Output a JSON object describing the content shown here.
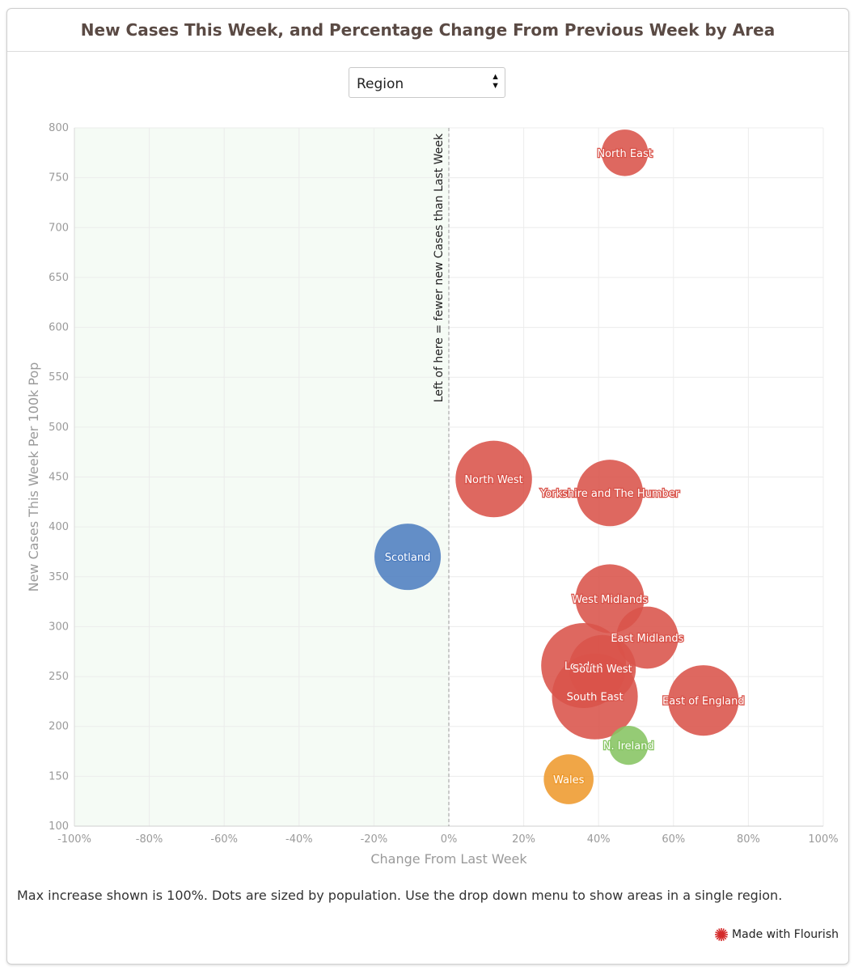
{
  "header": {
    "title": "New Cases This Week, and Percentage Change From Previous Week by Area"
  },
  "filter": {
    "selected": "Region",
    "icon": "sort-arrows-icon"
  },
  "footer": {
    "note": "Max increase shown is 100%. Dots are sized by population. Use the drop down menu to show areas in a single region.",
    "brand": "Made with Flourish",
    "brand_icon": "flourish-star-icon"
  },
  "chart_data": {
    "type": "scatter",
    "xlabel": "Change From Last Week",
    "ylabel": "New Cases This Week Per 100k Pop",
    "xlim": [
      -100,
      100
    ],
    "ylim": [
      100,
      800
    ],
    "x_ticks": [
      -100,
      -80,
      -60,
      -40,
      -20,
      0,
      20,
      40,
      60,
      80,
      100
    ],
    "x_tick_labels": [
      "-100%",
      "-80%",
      "-60%",
      "-40%",
      "-20%",
      "0%",
      "20%",
      "40%",
      "60%",
      "80%",
      "100%"
    ],
    "y_ticks": [
      100,
      150,
      200,
      250,
      300,
      350,
      400,
      450,
      500,
      550,
      600,
      650,
      700,
      750,
      800
    ],
    "y_tick_labels": [
      "100",
      "150",
      "200",
      "250",
      "300",
      "350",
      "400",
      "450",
      "500",
      "550",
      "600",
      "650",
      "700",
      "750",
      "800"
    ],
    "grid": true,
    "annotation": {
      "x": 0,
      "text": "Left of here = fewer new Cases than Last Week"
    },
    "shaded_region": {
      "x_from": -100,
      "x_to": 0,
      "color": "#f5fbf5"
    },
    "colors": {
      "England": "#d9534a",
      "Scotland": "#4f7ec0",
      "Wales": "#ee9a2e",
      "N. Ireland": "#86c462"
    },
    "points": [
      {
        "label": "North East",
        "x": 47,
        "y": 775,
        "population": 2.7,
        "group": "England"
      },
      {
        "label": "North West",
        "x": 12,
        "y": 448,
        "population": 7.3,
        "group": "England"
      },
      {
        "label": "Yorkshire and The Humber",
        "x": 43,
        "y": 434,
        "population": 5.5,
        "group": "England"
      },
      {
        "label": "Scotland",
        "x": -11,
        "y": 370,
        "population": 5.5,
        "group": "Scotland"
      },
      {
        "label": "West Midlands",
        "x": 43,
        "y": 328,
        "population": 5.9,
        "group": "England"
      },
      {
        "label": "East Midlands",
        "x": 53,
        "y": 289,
        "population": 4.8,
        "group": "England"
      },
      {
        "label": "London",
        "x": 36,
        "y": 261,
        "population": 9.0,
        "group": "England"
      },
      {
        "label": "South West",
        "x": 41,
        "y": 258,
        "population": 5.6,
        "group": "England"
      },
      {
        "label": "East of England",
        "x": 68,
        "y": 226,
        "population": 6.2,
        "group": "England"
      },
      {
        "label": "South East",
        "x": 39,
        "y": 230,
        "population": 9.2,
        "group": "England"
      },
      {
        "label": "N. Ireland",
        "x": 48,
        "y": 181,
        "population": 1.9,
        "group": "N. Ireland"
      },
      {
        "label": "Wales",
        "x": 32,
        "y": 147,
        "population": 3.1,
        "group": "Wales"
      }
    ]
  }
}
